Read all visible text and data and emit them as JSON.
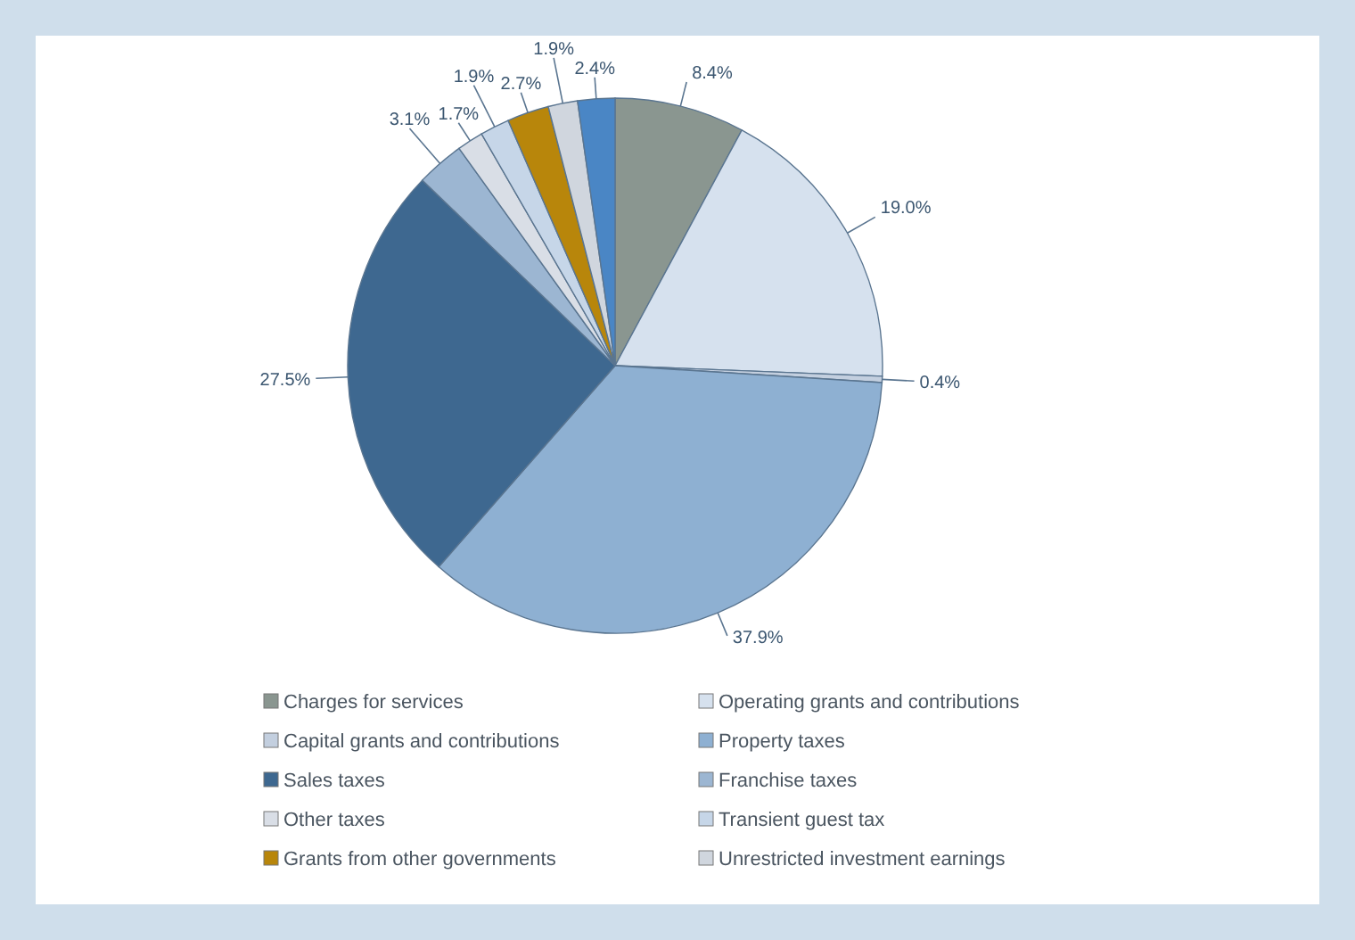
{
  "chart_data": {
    "type": "pie",
    "categories": [
      "Charges for services",
      "Operating grants and contributions",
      "Capital grants and contributions",
      "Property taxes",
      "Sales taxes",
      "Franchise taxes",
      "Other taxes",
      "Transient guest tax",
      "Grants from other governments",
      "Unrestricted investment earnings",
      null
    ],
    "values": [
      8.4,
      19.0,
      0.4,
      37.9,
      27.5,
      3.1,
      1.7,
      1.9,
      2.7,
      1.9,
      2.4
    ],
    "value_labels": [
      "8.4%",
      "19.0%",
      "0.4%",
      "37.9%",
      "27.5%",
      "3.1%",
      "1.7%",
      "1.9%",
      "2.7%",
      "1.9%",
      "2.4%"
    ],
    "colors": [
      "#8a9690",
      "#d6e1ee",
      "#c3cfdf",
      "#8eb0d2",
      "#3e6890",
      "#9cb6d2",
      "#d9dee6",
      "#c6d6e8",
      "#b8860b",
      "#d0d6de",
      "#4a86c5"
    ],
    "legend": "bottom"
  }
}
